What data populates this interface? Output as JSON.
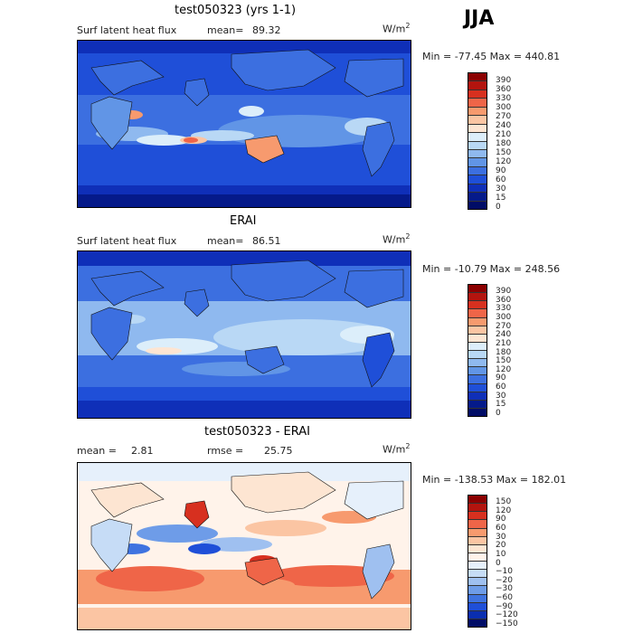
{
  "season": "JJA",
  "units_base": "W/m",
  "units_exp": "2",
  "panels": [
    {
      "title": "test050323 (yrs 1-1)",
      "label_left": "Surf latent heat flux",
      "stat_label": "mean=",
      "stat_value": "89.32",
      "minmax": "Min = -77.45  Max = 440.81",
      "kind": "abs"
    },
    {
      "title": "ERAI",
      "label_left": "Surf latent heat flux",
      "stat_label": "mean=",
      "stat_value": "86.51",
      "minmax": "Min = -10.79  Max = 248.56",
      "kind": "abs"
    },
    {
      "title": "test050323 - ERAI",
      "label_left": "mean =",
      "label_left_value": "2.81",
      "stat_label": "rmse =",
      "stat_value": "25.75",
      "minmax": "Min = -138.53  Max = 182.01",
      "kind": "diff"
    }
  ],
  "colorbar_abs": {
    "labels": [
      "390",
      "360",
      "330",
      "300",
      "270",
      "240",
      "210",
      "180",
      "150",
      "120",
      "90",
      "60",
      "30",
      "15",
      "0"
    ],
    "colors": [
      "#8b0000",
      "#b3140e",
      "#d7301f",
      "#ef6548",
      "#f79a6e",
      "#fbc5a3",
      "#fde5d2",
      "#dceefa",
      "#b9d8f5",
      "#8fb9ef",
      "#6195e6",
      "#3c6fe0",
      "#1f4fd8",
      "#0f2fb8",
      "#051a8a",
      "#000c66"
    ]
  },
  "colorbar_diff": {
    "labels": [
      "150",
      "120",
      "90",
      "60",
      "30",
      "20",
      "10",
      "0",
      "−10",
      "−20",
      "−30",
      "−60",
      "−90",
      "−120",
      "−150"
    ],
    "colors": [
      "#8b0000",
      "#b3140e",
      "#d7301f",
      "#ef6548",
      "#f79a6e",
      "#fbc5a3",
      "#fde5d2",
      "#fff3ea",
      "#e6f0fb",
      "#c6dcf6",
      "#9fc0f0",
      "#6e9ce8",
      "#3f73e0",
      "#1f4fd8",
      "#0a2eb0",
      "#000c66"
    ]
  }
}
